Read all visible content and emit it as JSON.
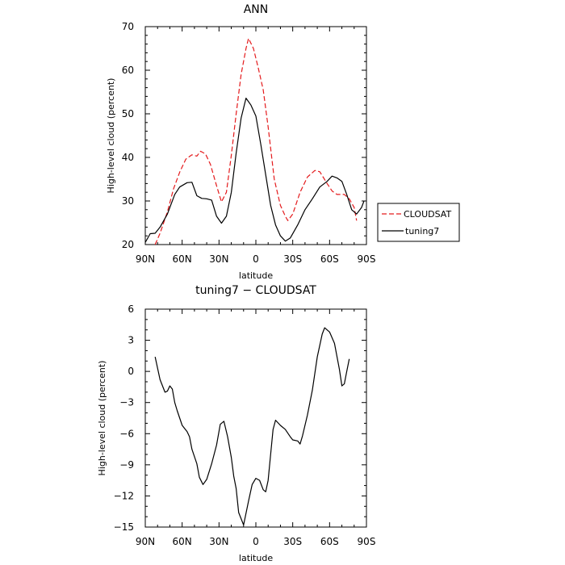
{
  "chart_data": [
    {
      "type": "line",
      "title": "ANN",
      "xlabel": "latitude",
      "ylabel": "High-level cloud (percent)",
      "xlim": [
        90,
        -90
      ],
      "ylim": [
        20,
        70
      ],
      "xticks": [
        90,
        60,
        30,
        0,
        -30,
        -60,
        -90
      ],
      "xtick_labels": [
        "90N",
        "60N",
        "30N",
        "0",
        "30S",
        "60S",
        "90S"
      ],
      "yticks": [
        20,
        30,
        40,
        50,
        60,
        70
      ],
      "ytick_labels": [
        "20",
        "30",
        "40",
        "50",
        "60",
        "70"
      ],
      "legend_position": "right",
      "series": [
        {
          "name": "CLOUDSAT",
          "color": "#e41a1c",
          "style": "dashed",
          "points": [
            [
              82,
              20
            ],
            [
              78,
              22.6
            ],
            [
              72,
              27.5
            ],
            [
              67,
              32.8
            ],
            [
              62,
              36.6
            ],
            [
              57,
              39.6
            ],
            [
              52,
              40.6
            ],
            [
              48,
              40.3
            ],
            [
              45,
              41.4
            ],
            [
              41,
              40.8
            ],
            [
              37,
              38.4
            ],
            [
              32,
              33.5
            ],
            [
              28,
              29.8
            ],
            [
              24,
              32
            ],
            [
              20,
              40.5
            ],
            [
              16,
              50
            ],
            [
              12,
              59
            ],
            [
              8,
              65
            ],
            [
              6,
              67.3
            ],
            [
              2,
              65
            ],
            [
              -2,
              60.5
            ],
            [
              -6,
              55.5
            ],
            [
              -10,
              47
            ],
            [
              -15,
              35
            ],
            [
              -20,
              29
            ],
            [
              -24,
              26.5
            ],
            [
              -26,
              25.5
            ],
            [
              -30,
              27
            ],
            [
              -36,
              32
            ],
            [
              -42,
              35.5
            ],
            [
              -48,
              37
            ],
            [
              -52,
              36.7
            ],
            [
              -58,
              34
            ],
            [
              -62,
              32.3
            ],
            [
              -66,
              31.5
            ],
            [
              -72,
              31.5
            ],
            [
              -76,
              30.5
            ],
            [
              -80,
              28.5
            ],
            [
              -82,
              25.5
            ]
          ]
        },
        {
          "name": "tuning7",
          "color": "#000000",
          "style": "solid",
          "points": [
            [
              90,
              20.5
            ],
            [
              86,
              22.5
            ],
            [
              82,
              22.6
            ],
            [
              78,
              24
            ],
            [
              72,
              27
            ],
            [
              66,
              31.5
            ],
            [
              62,
              33.2
            ],
            [
              56,
              34.2
            ],
            [
              52,
              34.3
            ],
            [
              48,
              31.2
            ],
            [
              44,
              30.6
            ],
            [
              40,
              30.5
            ],
            [
              36,
              30.2
            ],
            [
              32,
              26.5
            ],
            [
              28,
              24.9
            ],
            [
              24,
              26.5
            ],
            [
              20,
              32
            ],
            [
              16,
              41
            ],
            [
              12,
              49
            ],
            [
              8,
              53.6
            ],
            [
              4,
              52
            ],
            [
              0,
              49.5
            ],
            [
              -4,
              43
            ],
            [
              -8,
              36
            ],
            [
              -12,
              29
            ],
            [
              -16,
              24.5
            ],
            [
              -20,
              22
            ],
            [
              -24,
              20.8
            ],
            [
              -28,
              21.5
            ],
            [
              -34,
              24.5
            ],
            [
              -40,
              28
            ],
            [
              -46,
              30.5
            ],
            [
              -52,
              33.2
            ],
            [
              -58,
              34.5
            ],
            [
              -62,
              35.7
            ],
            [
              -66,
              35.3
            ],
            [
              -70,
              34.5
            ],
            [
              -74,
              31.5
            ],
            [
              -78,
              28
            ],
            [
              -82,
              27
            ],
            [
              -86,
              28.5
            ],
            [
              -88,
              30
            ]
          ]
        }
      ]
    },
    {
      "type": "line",
      "title": "tuning7 − CLOUDSAT",
      "xlabel": "latitude",
      "ylabel": "High-level cloud (percent)",
      "xlim": [
        90,
        -90
      ],
      "ylim": [
        -15,
        6
      ],
      "xticks": [
        90,
        60,
        30,
        0,
        -30,
        -60,
        -90
      ],
      "xtick_labels": [
        "90N",
        "60N",
        "30N",
        "0",
        "30S",
        "60S",
        "90S"
      ],
      "yticks": [
        -15,
        -12,
        -9,
        -6,
        -3,
        0,
        3,
        6
      ],
      "ytick_labels": [
        "−15",
        "−12",
        "−9",
        "−6",
        "−3",
        "0",
        "3",
        "6"
      ],
      "series": [
        {
          "color": "#000000",
          "style": "solid",
          "points": [
            [
              82,
              1.4
            ],
            [
              78,
              -0.8
            ],
            [
              74,
              -2
            ],
            [
              72,
              -1.9
            ],
            [
              70,
              -1.4
            ],
            [
              68,
              -1.7
            ],
            [
              66,
              -3
            ],
            [
              64,
              -3.8
            ],
            [
              60,
              -5.2
            ],
            [
              56,
              -5.8
            ],
            [
              54,
              -6.3
            ],
            [
              52,
              -7.5
            ],
            [
              48,
              -8.9
            ],
            [
              46,
              -10.2
            ],
            [
              43,
              -10.9
            ],
            [
              40,
              -10.4
            ],
            [
              36,
              -8.9
            ],
            [
              32,
              -7.1
            ],
            [
              29,
              -5.1
            ],
            [
              26,
              -4.8
            ],
            [
              23,
              -6.3
            ],
            [
              20,
              -8.3
            ],
            [
              18,
              -10.1
            ],
            [
              16,
              -11.3
            ],
            [
              14,
              -13.6
            ],
            [
              10,
              -14.8
            ],
            [
              6,
              -12.5
            ],
            [
              3,
              -10.9
            ],
            [
              0,
              -10.3
            ],
            [
              -3,
              -10.5
            ],
            [
              -6,
              -11.4
            ],
            [
              -8,
              -11.6
            ],
            [
              -10,
              -10.5
            ],
            [
              -12,
              -8
            ],
            [
              -14,
              -5.6
            ],
            [
              -16,
              -4.7
            ],
            [
              -20,
              -5.2
            ],
            [
              -24,
              -5.6
            ],
            [
              -28,
              -6.3
            ],
            [
              -30,
              -6.6
            ],
            [
              -34,
              -6.7
            ],
            [
              -36,
              -7
            ],
            [
              -38,
              -6.2
            ],
            [
              -42,
              -4.2
            ],
            [
              -46,
              -1.8
            ],
            [
              -50,
              1.4
            ],
            [
              -54,
              3.6
            ],
            [
              -56,
              4.2
            ],
            [
              -60,
              3.8
            ],
            [
              -64,
              2.7
            ],
            [
              -68,
              0.2
            ],
            [
              -70,
              -1.4
            ],
            [
              -72,
              -1.2
            ],
            [
              -74,
              0
            ],
            [
              -76,
              1.2
            ]
          ]
        }
      ]
    }
  ]
}
